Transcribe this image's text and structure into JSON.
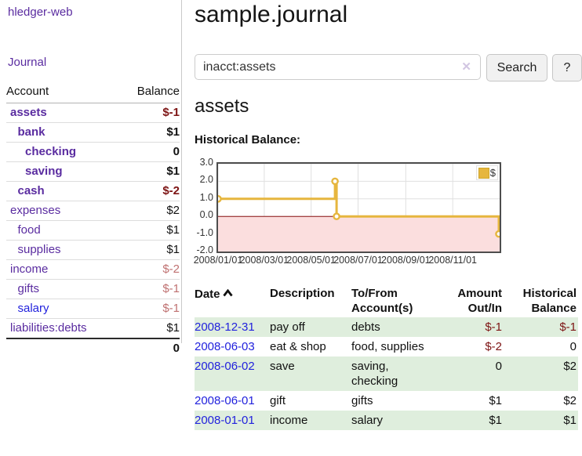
{
  "app": {
    "brand": "hledger-web"
  },
  "sidebar": {
    "journal_link": "Journal",
    "accounts_table": {
      "header_account": "Account",
      "header_balance": "Balance",
      "rows": [
        {
          "name": "assets",
          "depth": 1,
          "bold": true,
          "link_color": "purple",
          "balance": "$-1",
          "balance_style": "neg-bold"
        },
        {
          "name": "bank",
          "depth": 2,
          "bold": true,
          "link_color": "purple",
          "balance": "$1",
          "balance_style": "pos-bold"
        },
        {
          "name": "checking",
          "depth": 3,
          "bold": true,
          "link_color": "purple",
          "balance": "0",
          "balance_style": "pos-bold"
        },
        {
          "name": "saving",
          "depth": 3,
          "bold": true,
          "link_color": "purple",
          "balance": "$1",
          "balance_style": "pos-bold"
        },
        {
          "name": "cash",
          "depth": 2,
          "bold": true,
          "link_color": "purple",
          "balance": "$-2",
          "balance_style": "neg-bold"
        },
        {
          "name": "expenses",
          "depth": 1,
          "bold": false,
          "link_color": "purple",
          "balance": "$2",
          "balance_style": "pos"
        },
        {
          "name": "food",
          "depth": 2,
          "bold": false,
          "link_color": "purple",
          "balance": "$1",
          "balance_style": "pos"
        },
        {
          "name": "supplies",
          "depth": 2,
          "bold": false,
          "link_color": "purple",
          "balance": "$1",
          "balance_style": "pos"
        },
        {
          "name": "income",
          "depth": 1,
          "bold": false,
          "link_color": "purple",
          "balance": "$-2",
          "balance_style": "neg-light"
        },
        {
          "name": "gifts",
          "depth": 2,
          "bold": false,
          "link_color": "purple",
          "balance": "$-1",
          "balance_style": "neg-light"
        },
        {
          "name": "salary",
          "depth": 2,
          "bold": false,
          "link_color": "blue",
          "balance": "$-1",
          "balance_style": "neg-light"
        },
        {
          "name": "liabilities:debts",
          "depth": 1,
          "bold": false,
          "link_color": "purple",
          "balance": "$1",
          "balance_style": "pos"
        }
      ],
      "total": "0"
    }
  },
  "main": {
    "title": "sample.journal",
    "search": {
      "value": "inacct:assets",
      "clear_icon": "✕",
      "button_label": "Search",
      "help_label": "?"
    },
    "section_title": "assets",
    "chart_label": "Historical Balance:",
    "register_table": {
      "headers": {
        "date": "Date",
        "sort": "asc",
        "description": "Description",
        "accounts": "To/From Account(s)",
        "amount": "Amount Out/In",
        "balance": "Historical Balance"
      },
      "rows": [
        {
          "date": "2008-12-31",
          "description": "pay off",
          "accounts": "debts",
          "amount": "$-1",
          "amount_neg": true,
          "balance": "$-1",
          "balance_neg": true,
          "shaded": true
        },
        {
          "date": "2008-06-03",
          "description": "eat & shop",
          "accounts": "food, supplies",
          "amount": "$-2",
          "amount_neg": true,
          "balance": "0",
          "balance_neg": false,
          "shaded": false
        },
        {
          "date": "2008-06-02",
          "description": "save",
          "accounts": "saving,\nchecking",
          "amount": "0",
          "amount_neg": false,
          "balance": "$2",
          "balance_neg": false,
          "shaded": true
        },
        {
          "date": "2008-06-01",
          "description": "gift",
          "accounts": "gifts",
          "amount": "$1",
          "amount_neg": false,
          "balance": "$2",
          "balance_neg": false,
          "shaded": false
        },
        {
          "date": "2008-01-01",
          "description": "income",
          "accounts": "salary",
          "amount": "$1",
          "amount_neg": false,
          "balance": "$1",
          "balance_neg": false,
          "shaded": true
        }
      ]
    }
  },
  "chart_data": {
    "type": "line",
    "title": "Historical Balance",
    "step": true,
    "series": [
      {
        "name": "$",
        "color": "#e6b63e",
        "points": [
          [
            "2008-01-01",
            1
          ],
          [
            "2008-06-01",
            2
          ],
          [
            "2008-06-03",
            0
          ],
          [
            "2008-12-31",
            -1
          ]
        ]
      }
    ],
    "x_range": [
      "2008-01-01",
      "2009-01-01"
    ],
    "x_ticks": [
      "2008/01/01",
      "2008/03/01",
      "2008/05/01",
      "2008/07/01",
      "2008/09/01",
      "2008/11/01"
    ],
    "y_ticks": [
      "3.0",
      "2.0",
      "1.0",
      "0.0",
      "-1.0",
      "-2.0"
    ],
    "ylim": [
      -2,
      3
    ],
    "grid": true,
    "legend_position": "top-right",
    "gridline_color": "#e0e0e0",
    "negative_region_fill": "#fbdede",
    "zero_line_color": "#871010"
  }
}
